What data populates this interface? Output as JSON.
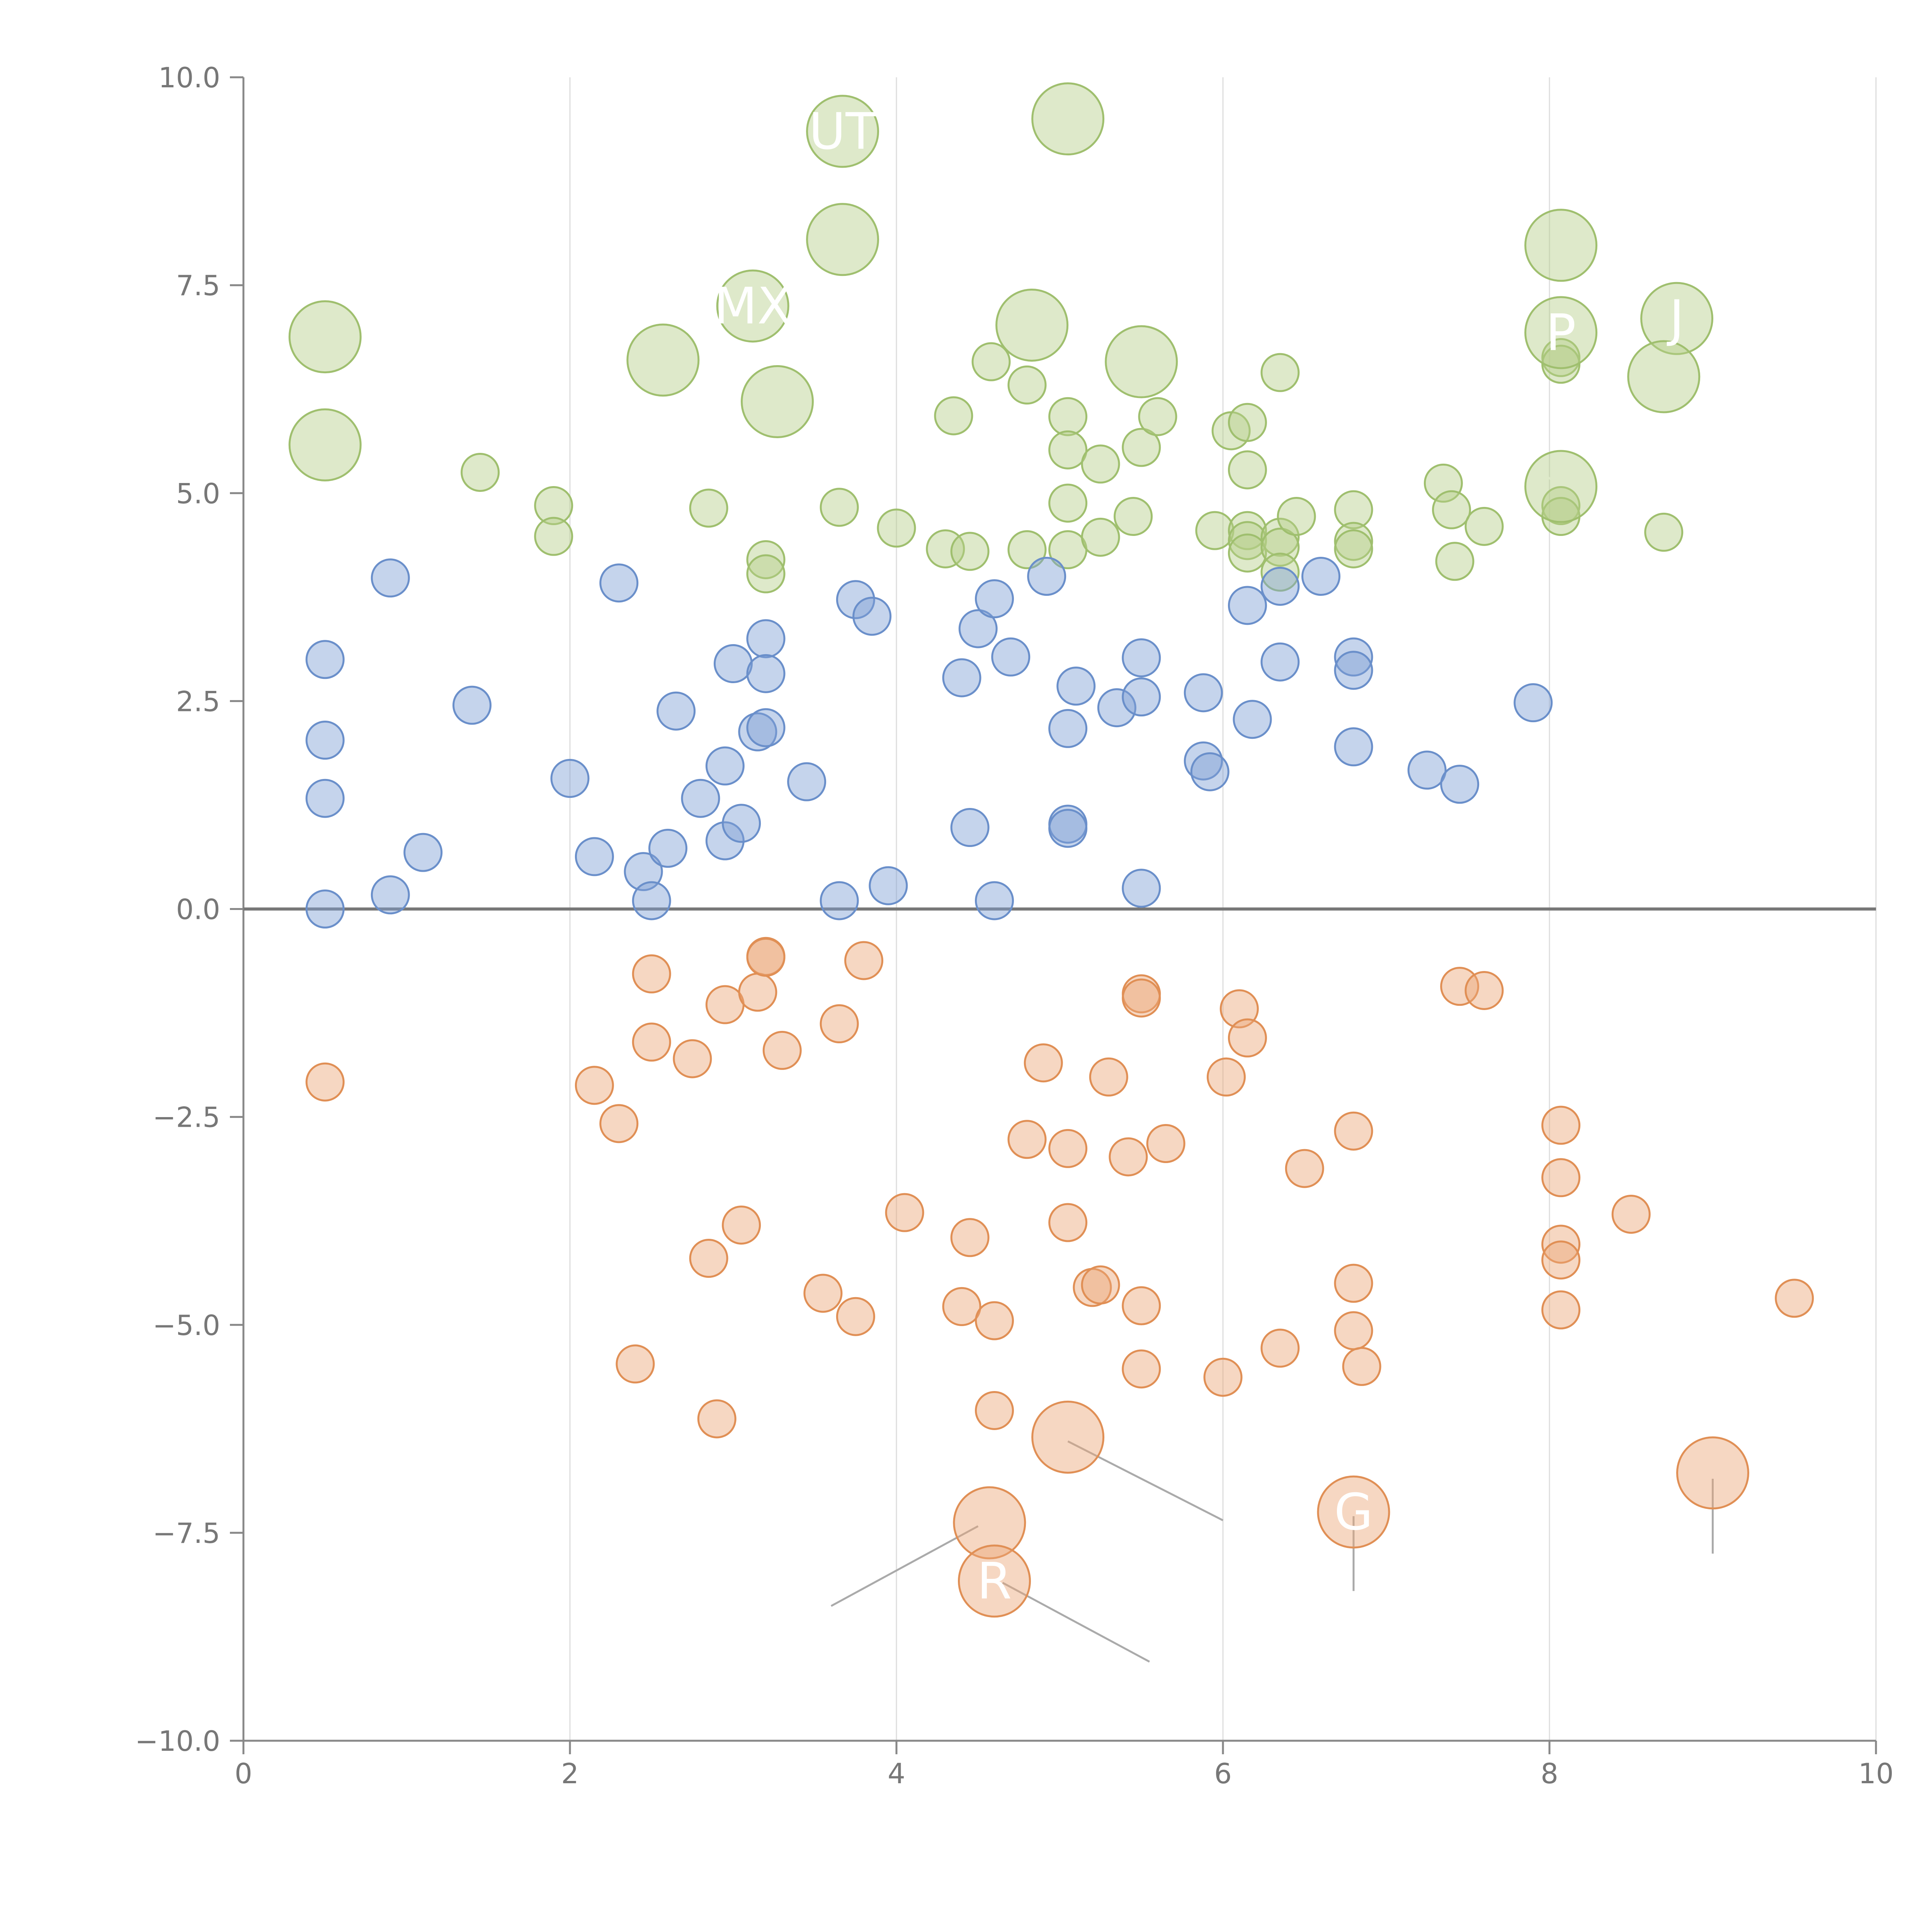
{
  "chart_data": {
    "type": "scatter",
    "title": "",
    "xlabel": "",
    "ylabel": "",
    "xlim": [
      0,
      10
    ],
    "ylim": [
      -10,
      10
    ],
    "x_ticks": [
      0,
      2,
      4,
      6,
      8,
      10
    ],
    "x_tick_labels": [
      "0",
      "2",
      "4",
      "6",
      "8",
      "10"
    ],
    "y_ticks": [
      10,
      7.5,
      5,
      2.5,
      0,
      -2.5,
      -5,
      -7.5,
      -10
    ],
    "y_tick_labels": [
      "10.0",
      "7.5",
      "5.0",
      "2.5",
      "0.0",
      "−2.5",
      "−5.0",
      "−7.5",
      "−10.0"
    ],
    "grid": {
      "vertical": true,
      "horizontal": false
    },
    "reference_line_y": 0,
    "colors": {
      "green": {
        "fill": "#b5cf8a",
        "stroke": "#9fbf6e"
      },
      "blue": {
        "fill": "#7fa0d4",
        "stroke": "#6a8fca"
      },
      "orange": {
        "fill": "#eca777",
        "stroke": "#e08f55"
      }
    },
    "series": [
      {
        "color_key": "green",
        "points": [
          [
            1.45,
            5.25
          ],
          [
            1.9,
            4.85
          ],
          [
            1.9,
            4.48
          ],
          [
            2.85,
            4.82
          ],
          [
            3.2,
            4.2
          ],
          [
            3.2,
            4.03
          ],
          [
            3.65,
            4.83
          ],
          [
            4.0,
            4.58
          ],
          [
            4.3,
            4.33
          ],
          [
            4.35,
            5.93
          ],
          [
            4.45,
            4.3
          ],
          [
            4.58,
            6.58
          ],
          [
            4.8,
            6.3
          ],
          [
            4.8,
            4.32
          ],
          [
            5.05,
            5.92
          ],
          [
            5.05,
            5.52
          ],
          [
            5.05,
            4.88
          ],
          [
            5.05,
            4.32
          ],
          [
            5.25,
            5.35
          ],
          [
            5.25,
            4.47
          ],
          [
            5.45,
            4.72
          ],
          [
            5.5,
            5.55
          ],
          [
            5.6,
            5.92
          ],
          [
            5.95,
            4.55
          ],
          [
            6.05,
            5.75
          ],
          [
            6.15,
            5.85
          ],
          [
            6.15,
            5.28
          ],
          [
            6.15,
            4.55
          ],
          [
            6.15,
            4.43
          ],
          [
            6.15,
            4.28
          ],
          [
            6.35,
            6.45
          ],
          [
            6.35,
            4.47
          ],
          [
            6.35,
            4.35
          ],
          [
            6.35,
            4.05
          ],
          [
            6.45,
            4.72
          ],
          [
            6.8,
            4.8
          ],
          [
            6.8,
            4.42
          ],
          [
            6.8,
            4.33
          ],
          [
            7.35,
            5.12
          ],
          [
            7.4,
            4.8
          ],
          [
            7.42,
            4.18
          ],
          [
            7.6,
            4.6
          ],
          [
            8.07,
            6.63
          ],
          [
            8.07,
            6.55
          ],
          [
            8.07,
            4.85
          ],
          [
            8.07,
            4.72
          ],
          [
            8.7,
            4.53
          ]
        ]
      },
      {
        "color_key": "blue",
        "points": [
          [
            0.5,
            3.0
          ],
          [
            0.5,
            2.03
          ],
          [
            0.5,
            1.33
          ],
          [
            0.5,
            0.0
          ],
          [
            0.9,
            3.98
          ],
          [
            0.9,
            0.17
          ],
          [
            1.1,
            0.68
          ],
          [
            1.4,
            2.45
          ],
          [
            2.0,
            1.57
          ],
          [
            2.15,
            0.63
          ],
          [
            2.3,
            3.92
          ],
          [
            2.45,
            0.45
          ],
          [
            2.5,
            0.1
          ],
          [
            2.6,
            0.73
          ],
          [
            2.65,
            2.38
          ],
          [
            2.8,
            1.33
          ],
          [
            2.95,
            1.72
          ],
          [
            2.95,
            0.82
          ],
          [
            3.0,
            2.95
          ],
          [
            3.05,
            1.03
          ],
          [
            3.15,
            2.13
          ],
          [
            3.2,
            3.25
          ],
          [
            3.2,
            2.83
          ],
          [
            3.2,
            2.18
          ],
          [
            3.45,
            1.53
          ],
          [
            3.65,
            0.1
          ],
          [
            3.75,
            3.72
          ],
          [
            3.85,
            3.52
          ],
          [
            3.95,
            0.28
          ],
          [
            4.4,
            2.78
          ],
          [
            4.45,
            0.98
          ],
          [
            4.5,
            3.37
          ],
          [
            4.6,
            3.73
          ],
          [
            4.6,
            0.1
          ],
          [
            4.7,
            3.03
          ],
          [
            4.92,
            4.0
          ],
          [
            5.05,
            1.02
          ],
          [
            5.05,
            0.97
          ],
          [
            5.05,
            2.17
          ],
          [
            5.1,
            2.68
          ],
          [
            5.35,
            2.42
          ],
          [
            5.5,
            3.02
          ],
          [
            5.5,
            2.55
          ],
          [
            5.5,
            0.25
          ],
          [
            5.88,
            2.6
          ],
          [
            5.88,
            1.78
          ],
          [
            5.92,
            1.65
          ],
          [
            6.15,
            3.65
          ],
          [
            6.18,
            2.28
          ],
          [
            6.35,
            3.88
          ],
          [
            6.35,
            2.97
          ],
          [
            6.6,
            4.0
          ],
          [
            6.8,
            3.03
          ],
          [
            6.8,
            2.87
          ],
          [
            6.8,
            1.95
          ],
          [
            7.25,
            1.67
          ],
          [
            7.45,
            1.5
          ],
          [
            7.9,
            2.48
          ]
        ]
      },
      {
        "color_key": "orange",
        "points": [
          [
            0.5,
            -2.08
          ],
          [
            2.15,
            -2.12
          ],
          [
            2.3,
            -2.58
          ],
          [
            2.4,
            -5.47
          ],
          [
            2.5,
            -1.6
          ],
          [
            2.5,
            -0.78
          ],
          [
            2.75,
            -1.8
          ],
          [
            2.85,
            -4.2
          ],
          [
            2.9,
            -6.13
          ],
          [
            2.95,
            -1.15
          ],
          [
            3.05,
            -3.8
          ],
          [
            3.15,
            -1.0
          ],
          [
            3.2,
            -0.57
          ],
          [
            3.2,
            -0.58
          ],
          [
            3.3,
            -1.7
          ],
          [
            3.55,
            -4.62
          ],
          [
            3.65,
            -1.38
          ],
          [
            3.75,
            -4.9
          ],
          [
            3.8,
            -0.62
          ],
          [
            4.05,
            -3.65
          ],
          [
            4.4,
            -4.78
          ],
          [
            4.45,
            -3.95
          ],
          [
            4.6,
            -4.95
          ],
          [
            4.6,
            -6.03
          ],
          [
            4.8,
            -2.77
          ],
          [
            4.9,
            -1.85
          ],
          [
            5.05,
            -2.88
          ],
          [
            5.05,
            -3.77
          ],
          [
            5.2,
            -4.55
          ],
          [
            5.25,
            -4.52
          ],
          [
            5.3,
            -2.02
          ],
          [
            5.42,
            -2.98
          ],
          [
            5.5,
            -4.77
          ],
          [
            5.5,
            -5.53
          ],
          [
            5.5,
            -1.02
          ],
          [
            5.5,
            -1.07
          ],
          [
            5.65,
            -2.82
          ],
          [
            6.0,
            -5.63
          ],
          [
            6.02,
            -2.02
          ],
          [
            6.1,
            -1.2
          ],
          [
            6.15,
            -1.55
          ],
          [
            6.35,
            -5.28
          ],
          [
            6.5,
            -3.12
          ],
          [
            6.8,
            -2.67
          ],
          [
            6.8,
            -4.5
          ],
          [
            6.8,
            -5.07
          ],
          [
            6.85,
            -5.5
          ],
          [
            7.45,
            -0.93
          ],
          [
            7.6,
            -0.98
          ],
          [
            8.07,
            -2.6
          ],
          [
            8.07,
            -3.23
          ],
          [
            8.07,
            -4.03
          ],
          [
            8.07,
            -4.22
          ],
          [
            8.07,
            -4.82
          ],
          [
            8.5,
            -3.67
          ],
          [
            9.5,
            -4.68
          ]
        ]
      }
    ],
    "large_bubbles": [
      {
        "color_key": "green",
        "x": 3.67,
        "y": 9.35,
        "label": "UT"
      },
      {
        "color_key": "green",
        "x": 5.05,
        "y": 9.5,
        "label": ""
      },
      {
        "color_key": "green",
        "x": 3.67,
        "y": 8.05,
        "label": ""
      },
      {
        "color_key": "green",
        "x": 3.12,
        "y": 7.25,
        "label": "MX"
      },
      {
        "color_key": "green",
        "x": 0.5,
        "y": 6.88,
        "label": ""
      },
      {
        "color_key": "green",
        "x": 2.57,
        "y": 6.6,
        "label": ""
      },
      {
        "color_key": "green",
        "x": 3.27,
        "y": 6.1,
        "label": ""
      },
      {
        "color_key": "green",
        "x": 0.5,
        "y": 5.58,
        "label": ""
      },
      {
        "color_key": "green",
        "x": 4.83,
        "y": 7.02,
        "label": ""
      },
      {
        "color_key": "green",
        "x": 5.5,
        "y": 6.58,
        "label": ""
      },
      {
        "color_key": "green",
        "x": 8.07,
        "y": 7.98,
        "label": ""
      },
      {
        "color_key": "green",
        "x": 8.07,
        "y": 6.93,
        "label": "P"
      },
      {
        "color_key": "green",
        "x": 8.78,
        "y": 7.1,
        "label": "J"
      },
      {
        "color_key": "green",
        "x": 8.7,
        "y": 6.4,
        "label": ""
      },
      {
        "color_key": "green",
        "x": 8.07,
        "y": 5.08,
        "label": ""
      },
      {
        "color_key": "orange",
        "x": 5.05,
        "y": -6.35,
        "label": ""
      },
      {
        "color_key": "orange",
        "x": 4.57,
        "y": -7.38,
        "label": ""
      },
      {
        "color_key": "orange",
        "x": 4.6,
        "y": -8.08,
        "label": "R"
      },
      {
        "color_key": "orange",
        "x": 6.8,
        "y": -7.25,
        "label": "G"
      },
      {
        "color_key": "orange",
        "x": 9.0,
        "y": -6.78,
        "label": ""
      }
    ],
    "leader_lines": [
      {
        "color": "gray",
        "from": [
          5.05,
          -6.4
        ],
        "to": [
          6.0,
          -7.35
        ]
      },
      {
        "color": "gray",
        "from": [
          4.5,
          -7.42
        ],
        "to": [
          3.6,
          -8.38
        ]
      },
      {
        "color": "gray",
        "from": [
          4.65,
          -8.1
        ],
        "to": [
          5.55,
          -9.05
        ]
      },
      {
        "color": "gray",
        "from": [
          6.8,
          -7.3
        ],
        "to": [
          6.8,
          -8.2
        ]
      },
      {
        "color": "gray",
        "from": [
          9.0,
          -6.85
        ],
        "to": [
          9.0,
          -7.75
        ]
      },
      {
        "color": "white",
        "from": [
          5.05,
          9.5
        ],
        "to": [
          5.25,
          9.5
        ]
      },
      {
        "color": "white",
        "from": [
          3.67,
          8.05
        ],
        "to": [
          3.57,
          8.28
        ]
      },
      {
        "color": "white",
        "from": [
          0.5,
          6.88
        ],
        "to": [
          0.7,
          7.1
        ]
      },
      {
        "color": "white",
        "from": [
          2.57,
          6.6
        ],
        "to": [
          2.42,
          6.85
        ]
      },
      {
        "color": "white",
        "from": [
          3.27,
          6.1
        ],
        "to": [
          3.45,
          5.95
        ]
      },
      {
        "color": "white",
        "from": [
          0.5,
          5.58
        ],
        "to": [
          0.68,
          5.38
        ]
      },
      {
        "color": "white",
        "from": [
          4.83,
          7.02
        ],
        "to": [
          4.95,
          7.3
        ]
      },
      {
        "color": "white",
        "from": [
          5.5,
          6.58
        ],
        "to": [
          5.7,
          6.7
        ]
      },
      {
        "color": "white",
        "from": [
          8.07,
          7.98
        ],
        "to": [
          8.15,
          8.28
        ]
      },
      {
        "color": "white",
        "from": [
          8.7,
          6.4
        ],
        "to": [
          8.85,
          6.25
        ]
      },
      {
        "color": "white",
        "from": [
          8.07,
          5.08
        ],
        "to": [
          7.95,
          5.25
        ]
      }
    ]
  }
}
